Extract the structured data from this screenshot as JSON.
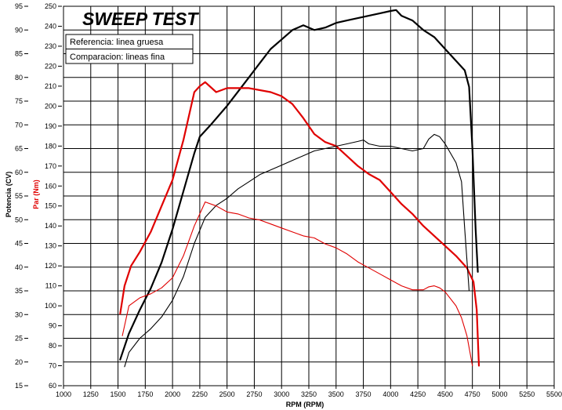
{
  "chart_data": {
    "type": "line",
    "title": "SWEEP TEST",
    "xlabel": "RPM (RPM)",
    "ylabel_left": "Potencia (CV)",
    "ylabel_right": "Par (Nm)",
    "legend": [
      "Referencia: linea gruesa",
      "Comparacion: lineas fina"
    ],
    "legend_position": "top-left",
    "grid": true,
    "xlim": [
      1000,
      5500
    ],
    "ylim_left": [
      15,
      95
    ],
    "ylim_right": [
      60,
      250
    ],
    "x_ticks": [
      "1000",
      "1250",
      "1500",
      "1750",
      "2000",
      "2250",
      "2500",
      "2750",
      "3000",
      "3250",
      "3500",
      "3750",
      "4000",
      "4250",
      "4500",
      "4750",
      "5000",
      "5250",
      "5500"
    ],
    "y_left_ticks": [
      "15",
      "20",
      "25",
      "30",
      "35",
      "40",
      "45",
      "50",
      "55",
      "60",
      "65",
      "70",
      "75",
      "80",
      "85",
      "90",
      "95"
    ],
    "y_right_ticks": [
      "60",
      "70",
      "80",
      "90",
      "100",
      "110",
      "120",
      "130",
      "140",
      "150",
      "160",
      "170",
      "180",
      "190",
      "200",
      "210",
      "220",
      "230",
      "240",
      "250"
    ],
    "colors": {
      "power": "#000000",
      "torque": "#e00000"
    },
    "series": [
      {
        "name": "Potencia referencia",
        "axis": "left",
        "color": "#000000",
        "thickness": "thick",
        "points": [
          [
            1520,
            20.5
          ],
          [
            1600,
            26
          ],
          [
            1700,
            31
          ],
          [
            1800,
            35.5
          ],
          [
            1900,
            41
          ],
          [
            2000,
            48
          ],
          [
            2100,
            56
          ],
          [
            2200,
            64
          ],
          [
            2250,
            67.5
          ],
          [
            2350,
            70
          ],
          [
            2500,
            74
          ],
          [
            2600,
            77
          ],
          [
            2700,
            80
          ],
          [
            2800,
            83
          ],
          [
            2900,
            86
          ],
          [
            3000,
            88
          ],
          [
            3100,
            90
          ],
          [
            3200,
            91
          ],
          [
            3300,
            90
          ],
          [
            3400,
            90.5
          ],
          [
            3500,
            91.5
          ],
          [
            3600,
            92
          ],
          [
            3700,
            92.5
          ],
          [
            3800,
            93
          ],
          [
            3900,
            93.5
          ],
          [
            4000,
            94
          ],
          [
            4050,
            94.2
          ],
          [
            4100,
            93
          ],
          [
            4200,
            92
          ],
          [
            4300,
            90
          ],
          [
            4400,
            88.5
          ],
          [
            4500,
            86
          ],
          [
            4600,
            83.5
          ],
          [
            4680,
            81.5
          ],
          [
            4720,
            78
          ],
          [
            4750,
            65
          ],
          [
            4780,
            48
          ],
          [
            4800,
            39
          ]
        ]
      },
      {
        "name": "Par referencia",
        "axis": "right",
        "color": "#e00000",
        "thickness": "thick",
        "points": [
          [
            1520,
            96
          ],
          [
            1560,
            110
          ],
          [
            1620,
            120
          ],
          [
            1700,
            127
          ],
          [
            1800,
            137
          ],
          [
            1900,
            150
          ],
          [
            2000,
            163
          ],
          [
            2100,
            183
          ],
          [
            2200,
            207
          ],
          [
            2250,
            210
          ],
          [
            2300,
            212
          ],
          [
            2400,
            207
          ],
          [
            2500,
            209
          ],
          [
            2700,
            209
          ],
          [
            2900,
            207
          ],
          [
            3000,
            205
          ],
          [
            3100,
            201
          ],
          [
            3200,
            194
          ],
          [
            3300,
            186
          ],
          [
            3400,
            182
          ],
          [
            3500,
            180
          ],
          [
            3600,
            175
          ],
          [
            3700,
            170
          ],
          [
            3800,
            166
          ],
          [
            3900,
            163
          ],
          [
            4000,
            157
          ],
          [
            4100,
            151
          ],
          [
            4200,
            146
          ],
          [
            4300,
            140
          ],
          [
            4400,
            135
          ],
          [
            4500,
            130
          ],
          [
            4600,
            125
          ],
          [
            4700,
            119
          ],
          [
            4760,
            112
          ],
          [
            4790,
            98
          ],
          [
            4810,
            70
          ]
        ]
      },
      {
        "name": "Potencia comparacion",
        "axis": "left",
        "color": "#000000",
        "thickness": "thin",
        "points": [
          [
            1560,
            19
          ],
          [
            1600,
            22
          ],
          [
            1700,
            25
          ],
          [
            1800,
            27
          ],
          [
            1900,
            29.5
          ],
          [
            2000,
            33
          ],
          [
            2100,
            38
          ],
          [
            2200,
            45
          ],
          [
            2300,
            50.5
          ],
          [
            2400,
            53
          ],
          [
            2500,
            54.5
          ],
          [
            2600,
            56.5
          ],
          [
            2700,
            58
          ],
          [
            2800,
            59.5
          ],
          [
            2900,
            60.5
          ],
          [
            3000,
            61.5
          ],
          [
            3100,
            62.5
          ],
          [
            3200,
            63.5
          ],
          [
            3300,
            64.5
          ],
          [
            3400,
            65
          ],
          [
            3500,
            65.5
          ],
          [
            3600,
            66
          ],
          [
            3700,
            66.5
          ],
          [
            3750,
            66.8
          ],
          [
            3800,
            66
          ],
          [
            3900,
            65.5
          ],
          [
            4000,
            65.5
          ],
          [
            4100,
            65
          ],
          [
            4200,
            64.5
          ],
          [
            4300,
            65
          ],
          [
            4350,
            67
          ],
          [
            4400,
            68
          ],
          [
            4450,
            67.5
          ],
          [
            4500,
            66
          ],
          [
            4600,
            62
          ],
          [
            4650,
            58
          ],
          [
            4680,
            48
          ],
          [
            4720,
            35
          ]
        ]
      },
      {
        "name": "Par comparacion",
        "axis": "right",
        "color": "#e00000",
        "thickness": "thin",
        "points": [
          [
            1540,
            85
          ],
          [
            1600,
            100
          ],
          [
            1700,
            104
          ],
          [
            1800,
            106
          ],
          [
            1900,
            109
          ],
          [
            2000,
            114
          ],
          [
            2100,
            125
          ],
          [
            2200,
            140
          ],
          [
            2300,
            152
          ],
          [
            2400,
            150
          ],
          [
            2500,
            147
          ],
          [
            2600,
            146
          ],
          [
            2700,
            144
          ],
          [
            2800,
            143
          ],
          [
            2900,
            141
          ],
          [
            3000,
            139
          ],
          [
            3100,
            137
          ],
          [
            3200,
            135
          ],
          [
            3300,
            134
          ],
          [
            3400,
            131
          ],
          [
            3500,
            129
          ],
          [
            3600,
            126
          ],
          [
            3700,
            122
          ],
          [
            3800,
            119
          ],
          [
            3900,
            116
          ],
          [
            4000,
            113
          ],
          [
            4100,
            110
          ],
          [
            4200,
            108
          ],
          [
            4300,
            108
          ],
          [
            4350,
            109.5
          ],
          [
            4400,
            110
          ],
          [
            4450,
            109
          ],
          [
            4500,
            107
          ],
          [
            4600,
            100
          ],
          [
            4650,
            94
          ],
          [
            4700,
            85
          ],
          [
            4750,
            70
          ]
        ]
      }
    ]
  }
}
